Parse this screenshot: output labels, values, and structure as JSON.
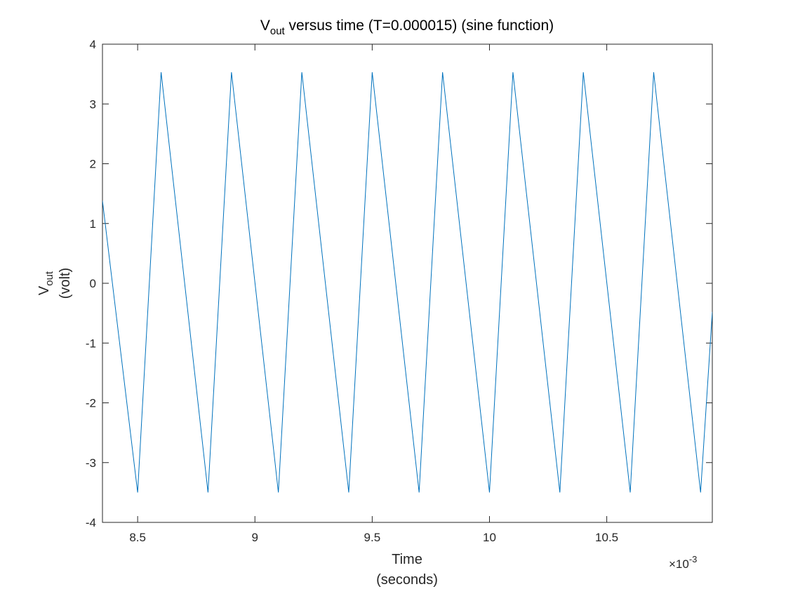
{
  "chart_data": {
    "type": "line",
    "title": {
      "prefix": "V",
      "subscript": "out",
      "suffix": " versus time (T=0.000015) (sine function)"
    },
    "xlabel": [
      "Time",
      "(seconds)"
    ],
    "ylabel": {
      "line1_base": "V",
      "line1_subscript": "out",
      "line2": "(volt)"
    },
    "x_multiplier": {
      "base": "×10",
      "exponent": "-3"
    },
    "xlim": [
      8.35,
      10.95
    ],
    "ylim": [
      -4,
      4
    ],
    "x_ticks": [
      8.5,
      9,
      9.5,
      10,
      10.5
    ],
    "x_tick_labels": [
      "8.5",
      "9",
      "9.5",
      "10",
      "10.5"
    ],
    "y_ticks": [
      -4,
      -3,
      -2,
      -1,
      0,
      1,
      2,
      3,
      4
    ],
    "y_tick_labels": [
      "-4",
      "-3",
      "-2",
      "-1",
      "0",
      "1",
      "2",
      "3",
      "4"
    ],
    "grid": false,
    "legend": "none",
    "series": [
      {
        "color": "#0072BD",
        "x": [
          8.35,
          8.5,
          8.6,
          8.8,
          8.9,
          9.1,
          9.2,
          9.4,
          9.5,
          9.7,
          9.8,
          10.0,
          10.1,
          10.3,
          10.4,
          10.6,
          10.7,
          10.9,
          10.95
        ],
        "y": [
          1.38,
          -3.5,
          3.53,
          -3.5,
          3.53,
          -3.5,
          3.53,
          -3.5,
          3.53,
          -3.5,
          3.53,
          -3.5,
          3.53,
          -3.5,
          3.53,
          -3.5,
          3.53,
          -3.5,
          -0.48
        ]
      }
    ]
  }
}
